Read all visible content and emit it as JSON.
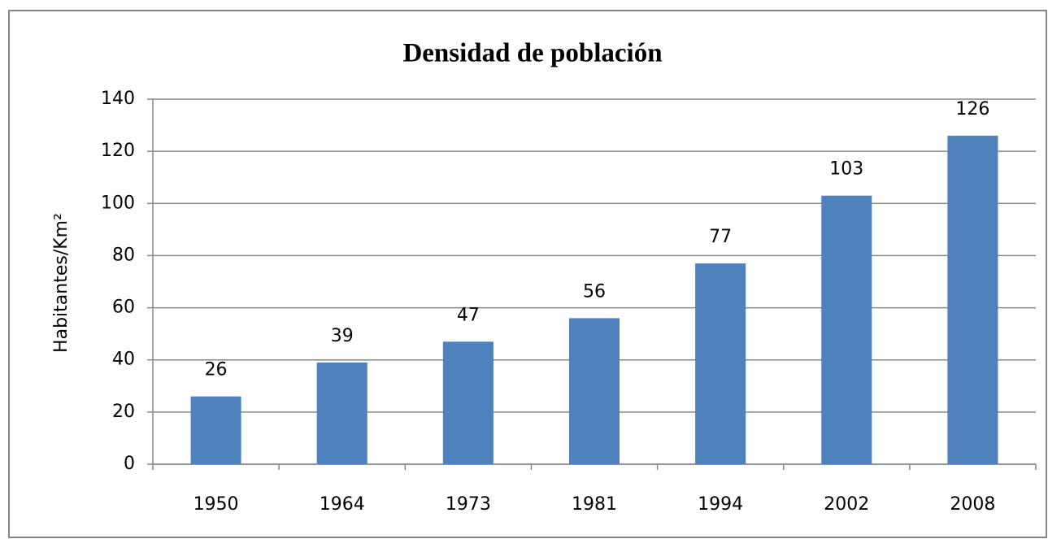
{
  "chart_data": {
    "type": "bar",
    "title": "Densidad de población",
    "y_label": "Habitantes/Km²",
    "categories": [
      "1950",
      "1964",
      "1973",
      "1981",
      "1994",
      "2002",
      "2008"
    ],
    "values": [
      26,
      39,
      47,
      56,
      77,
      103,
      126
    ],
    "color": "#4f81bd",
    "ylim": [
      0,
      140
    ],
    "yticks": [
      0,
      20,
      40,
      60,
      80,
      100,
      120,
      140
    ],
    "grid": true,
    "data_labels": true
  }
}
